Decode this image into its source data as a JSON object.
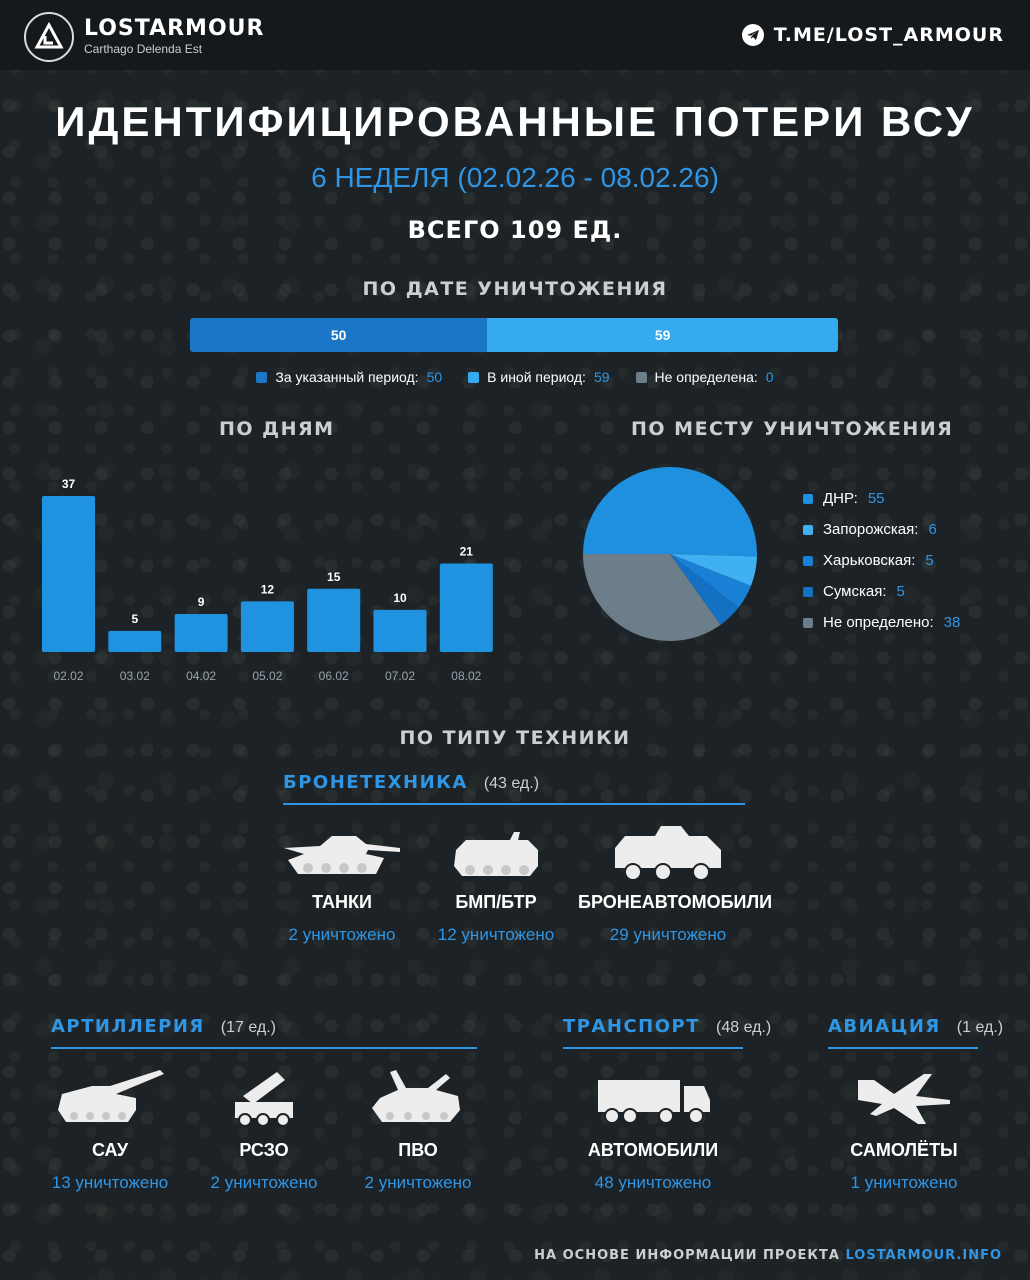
{
  "header": {
    "brand": "LOSTARMOUR",
    "tagline": "Carthago Delenda Est",
    "channel": "T.ME/LOST_ARMOUR",
    "logo_icon": "lostarmour-logo-icon",
    "channel_icon": "telegram-icon"
  },
  "title": "ИДЕНТИФИЦИРОВАННЫЕ ПОТЕРИ ВСУ",
  "week": "6 НЕДЕЛЯ (02.02.26 - 08.02.26)",
  "total": "ВСЕГО 109 ЕД.",
  "colors": {
    "dark_blue": "#1c76c8",
    "light_blue": "#36aaee",
    "accent": "#2f96e5",
    "grey": "#6c7e8a",
    "bar_blue": "#1f93e0"
  },
  "by_date": {
    "heading": "ПО ДАТЕ УНИЧТОЖЕНИЯ",
    "legend": [
      {
        "label": "За указанный период:",
        "value": "50"
      },
      {
        "label": "В иной период:",
        "value": "59"
      },
      {
        "label": "Не определена:",
        "value": "0"
      }
    ]
  },
  "by_days_heading": "ПО ДНЯМ",
  "by_place_heading": "ПО МЕСТУ УНИЧТОЖЕНИЯ",
  "by_type_heading": "ПО ТИПУ ТЕХНИКИ",
  "chart_data": [
    {
      "type": "bar",
      "orientation": "horizontal-stacked",
      "title": "ПО ДАТЕ УНИЧТОЖЕНИЯ",
      "series": [
        {
          "name": "За указанный период",
          "values": [
            50
          ]
        },
        {
          "name": "В иной период",
          "values": [
            59
          ]
        },
        {
          "name": "Не определена",
          "values": [
            0
          ]
        }
      ]
    },
    {
      "type": "bar",
      "title": "ПО ДНЯМ",
      "categories": [
        "02.02",
        "03.02",
        "04.02",
        "05.02",
        "06.02",
        "07.02",
        "08.02"
      ],
      "values": [
        37,
        5,
        9,
        12,
        15,
        10,
        21
      ],
      "grid": false
    },
    {
      "type": "pie",
      "title": "ПО МЕСТУ УНИЧТОЖЕНИЯ",
      "labels": [
        "ДНР",
        "Запорожская",
        "Харьковская",
        "Сумская",
        "Не определено"
      ],
      "values": [
        55,
        6,
        5,
        5,
        38
      ],
      "colors": [
        "#1f8fe0",
        "#3fb0f2",
        "#1980d6",
        "#1370c2",
        "#6c7e8a"
      ],
      "legend": "right"
    }
  ],
  "categories": {
    "armor": {
      "title": "БРОНЕТЕХНИКА",
      "count": "(43 ед.)",
      "items": [
        {
          "name": "ТАНКИ",
          "count": "2 уничтожено",
          "icon": "tank-icon"
        },
        {
          "name": "БМП/БТР",
          "count": "12 уничтожено",
          "icon": "ifv-icon"
        },
        {
          "name": "БРОНЕАВТОМОБИЛИ",
          "count": "29 уничтожено",
          "icon": "armored-car-icon"
        }
      ]
    },
    "artillery": {
      "title": "АРТИЛЛЕРИЯ",
      "count": "(17 ед.)",
      "items": [
        {
          "name": "САУ",
          "count": "13 уничтожено",
          "icon": "spg-icon"
        },
        {
          "name": "РСЗО",
          "count": "2 уничтожено",
          "icon": "mlrs-icon"
        },
        {
          "name": "ПВО",
          "count": "2 уничтожено",
          "icon": "air-defense-icon"
        }
      ]
    },
    "transport": {
      "title": "ТРАНСПОРТ",
      "count": "(48 ед.)",
      "items": [
        {
          "name": "АВТОМОБИЛИ",
          "count": "48 уничтожено",
          "icon": "truck-icon"
        }
      ]
    },
    "aviation": {
      "title": "АВИАЦИЯ",
      "count": "(1 ед.)",
      "items": [
        {
          "name": "САМОЛЁТЫ",
          "count": "1 уничтожено",
          "icon": "jet-icon"
        }
      ]
    }
  },
  "footer": {
    "prefix": "НА ОСНОВЕ ИНФОРМАЦИИ ПРОЕКТА",
    "link": "LOSTARMOUR.INFO"
  }
}
